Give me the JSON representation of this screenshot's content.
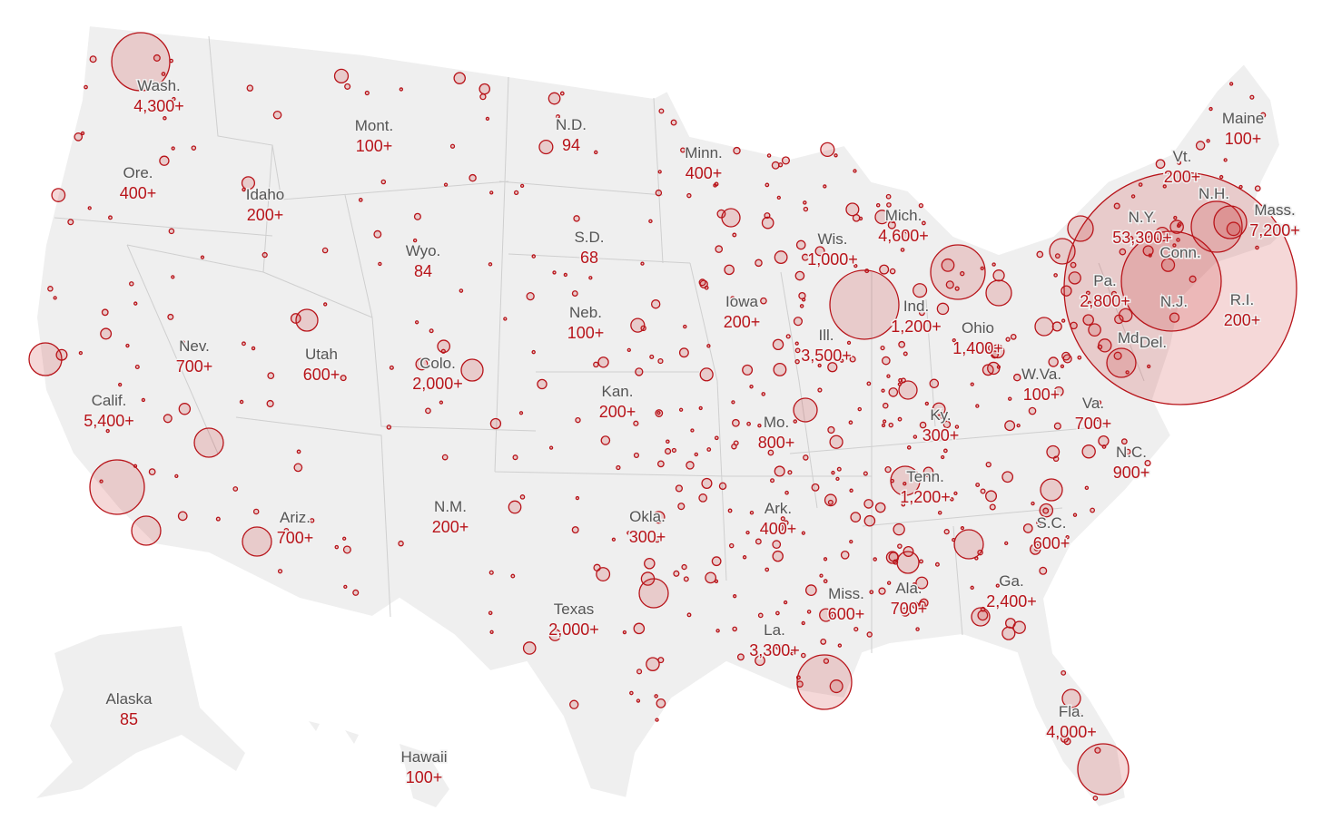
{
  "states": [
    {
      "name": "Wash.",
      "count": "4,300+"
    },
    {
      "name": "Ore.",
      "count": "400+"
    },
    {
      "name": "Calif.",
      "count": "5,400+"
    },
    {
      "name": "Nev.",
      "count": "700+"
    },
    {
      "name": "Idaho",
      "count": "200+"
    },
    {
      "name": "Mont.",
      "count": "100+"
    },
    {
      "name": "Wyo.",
      "count": "84"
    },
    {
      "name": "Utah",
      "count": "600+"
    },
    {
      "name": "Ariz.",
      "count": "700+"
    },
    {
      "name": "Colo.",
      "count": "2,000+"
    },
    {
      "name": "N.M.",
      "count": "200+"
    },
    {
      "name": "N.D.",
      "count": "94"
    },
    {
      "name": "S.D.",
      "count": "68"
    },
    {
      "name": "Neb.",
      "count": "100+"
    },
    {
      "name": "Kan.",
      "count": "200+"
    },
    {
      "name": "Okla.",
      "count": "300+"
    },
    {
      "name": "Texas",
      "count": "2,000+"
    },
    {
      "name": "Minn.",
      "count": "400+"
    },
    {
      "name": "Iowa",
      "count": "200+"
    },
    {
      "name": "Mo.",
      "count": "800+"
    },
    {
      "name": "Ark.",
      "count": "400+"
    },
    {
      "name": "La.",
      "count": "3,300+"
    },
    {
      "name": "Wis.",
      "count": "1,000+"
    },
    {
      "name": "Ill.",
      "count": "3,500+"
    },
    {
      "name": "Mich.",
      "count": "4,600+"
    },
    {
      "name": "Ind.",
      "count": "1,200+"
    },
    {
      "name": "Ohio",
      "count": "1,400+"
    },
    {
      "name": "Ky.",
      "count": "300+"
    },
    {
      "name": "Tenn.",
      "count": "1,200+"
    },
    {
      "name": "Miss.",
      "count": "600+"
    },
    {
      "name": "Ala.",
      "count": "700+"
    },
    {
      "name": "Ga.",
      "count": "2,400+"
    },
    {
      "name": "Fla.",
      "count": "4,000+"
    },
    {
      "name": "S.C.",
      "count": "600+"
    },
    {
      "name": "N.C.",
      "count": "900+"
    },
    {
      "name": "Va.",
      "count": "700+"
    },
    {
      "name": "W.Va.",
      "count": "100+"
    },
    {
      "name": "Pa.",
      "count": "2,800+"
    },
    {
      "name": "N.Y.",
      "count": "53,300+"
    },
    {
      "name": "N.J."
    },
    {
      "name": "Conn."
    },
    {
      "name": "Md."
    },
    {
      "name": "Del."
    },
    {
      "name": "Mass.",
      "count": "7,200+"
    },
    {
      "name": "R.I.",
      "count": "200+"
    },
    {
      "name": "N.H."
    },
    {
      "name": "Vt.",
      "count": "200+"
    },
    {
      "name": "Maine",
      "count": "100+"
    },
    {
      "name": "Alaska",
      "count": "85"
    },
    {
      "name": "Hawaii",
      "count": "100+"
    }
  ]
}
